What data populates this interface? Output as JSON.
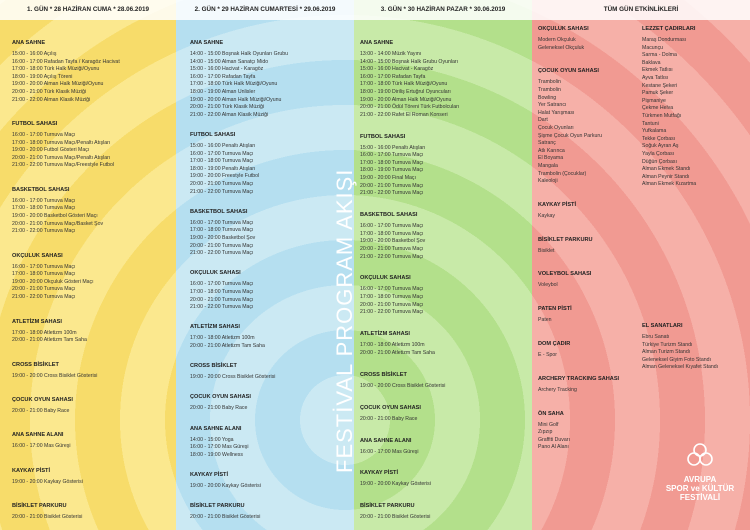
{
  "columns": [
    {
      "header": "1. GÜN * 28 HAZİRAN CUMA * 28.06.2019",
      "sections": [
        {
          "title": "ANA SAHNE",
          "items": [
            "15:00 - 16:00 Açılış",
            "16:00 - 17:00 Rafadan Tayfa / Karagöz Hacivat",
            "17:00 - 18:00 Türk Halk Müziği/Oyunu",
            "18:00 - 19:00 Açılış Töreni",
            "19:00 - 20:00 Alman Halk Müziği/Oyunu",
            "20:00 - 21:00 Türk Klasik Müziği",
            "21:00 - 22:00 Alman Klasik Müziği"
          ]
        },
        {
          "title": "FUTBOL SAHASI",
          "items": [
            "16:00 - 17:00 Turnuva Maçı",
            "17:00 - 18:00 Turnuva Maçı/Penaltı Atışları",
            "19:00 - 20:00 Futbol Gösteri Maçı",
            "20:00 - 21:00 Turnuva Maçı/Penaltı Atışları",
            "21:00 - 22:00 Turnuva Maçı/Freestyle Futbol"
          ]
        },
        {
          "title": "BASKETBOL SAHASI",
          "items": [
            "16:00 - 17:00 Turnuva Maçı",
            "17:00 - 18:00 Turnuva Maçı",
            "19:00 - 20:00 Basketbol Gösteri Maçı",
            "20:00 - 21:00 Turnuva Maçı/Basket Şov",
            "21:00 - 22:00 Turnuva Maçı"
          ]
        },
        {
          "title": "OKÇULUK SAHASI",
          "items": [
            "16:00 - 17:00 Turnuva Maçı",
            "17:00 - 18:00 Turnuva Maçı",
            "19:00 - 20:00 Okçuluk Gösteri Maçı",
            "20:00 - 21:00 Turnuva Maçı",
            "21:00 - 22:00 Turnuva Maçı"
          ]
        },
        {
          "title": "ATLETİZM SAHASI",
          "items": [
            "17:00 - 18:00 Atletizm 100m",
            "20:00 - 21:00 Atletizm Tam Saha"
          ]
        },
        {
          "title": "CROSS BİSİKLET",
          "items": [
            "19:00 - 20:00 Cross Bisiklet Gösterisi"
          ]
        },
        {
          "title": "ÇOCUK OYUN SAHASI",
          "items": [
            "20:00 - 21:00 Baby Race"
          ]
        },
        {
          "title": "ANA SAHNE ALANI",
          "items": [
            "16:00 - 17:00 Mas Güreşi"
          ]
        },
        {
          "title": "KAYKAY PİSTİ",
          "items": [
            "19:00 - 20:00 Kaykay Gösterisi"
          ]
        },
        {
          "title": "BİSİKLET PARKURU",
          "items": [
            "20:00 - 21:00 Bisiklet Gösterisi"
          ]
        }
      ]
    },
    {
      "header": "2. GÜN * 29 HAZİRAN CUMARTESİ * 29.06.2019",
      "sections": [
        {
          "title": "ANA SAHNE",
          "items": [
            "14:00 - 15:00 Boşnak Halk Oyunları Grubu",
            "14:00 - 15:00 Alman Sanatçı Mido",
            "15:00 - 16:00 Hacivat - Karagöz",
            "16:00 - 17:00 Rafadan Tayfa",
            "17:00 - 18:00 Türk Halk Müziği/Oyunu",
            "18:00 - 19:00 Alman Unlisler",
            "19:00 - 20:00 Alman Halk Müziği/Oyunu",
            "20:00 - 21:00 Türk Klasik Müziği",
            "21:00 - 22:00 Alman Klasik Müziği"
          ]
        },
        {
          "title": "FUTBOL SAHASI",
          "items": [
            "15:00 - 16:00 Penaltı Atışları",
            "16:00 - 17:00 Turnuva Maçı",
            "17:00 - 18:00 Turnuva Maçı",
            "18:00 - 19:00 Penaltı Atışları",
            "19:00 - 20:00 Freestyle Futbol",
            "20:00 - 21:00 Turnuva Maçı",
            "21:00 - 22:00 Turnuva Maçı"
          ]
        },
        {
          "title": "BASKETBOL SAHASI",
          "items": [
            "16:00 - 17:00 Turnuva Maçı",
            "17:00 - 18:00 Turnuva Maçı",
            "19:00 - 20:00 Basketbol Şov",
            "20:00 - 21:00 Turnuva Maçı",
            "21:00 - 22:00 Turnuva Maçı"
          ]
        },
        {
          "title": "OKÇULUK SAHASI",
          "items": [
            "16:00 - 17:00 Turnuva Maçı",
            "17:00 - 18:00 Turnuva Maçı",
            "20:00 - 21:00 Turnuva Maçı",
            "21:00 - 22:00 Turnuva Maçı"
          ]
        },
        {
          "title": "ATLETİZM SAHASI",
          "items": [
            "17:00 - 18:00 Atletizm 100m",
            "20:00 - 21:00 Atletizm Tam Saha"
          ]
        },
        {
          "title": "CROSS BİSİKLET",
          "items": [
            "19:00 - 20:00 Cross Bisiklet Gösterisi"
          ]
        },
        {
          "title": "ÇOCUK OYUN SAHASI",
          "items": [
            "20:00 - 21:00 Baby Race"
          ]
        },
        {
          "title": "ANA SAHNE ALANI",
          "items": [
            "14:00 - 15:00 Yoga",
            "16:00 - 17:00 Mas Güreşi",
            "18:00 - 19:00 Wellness"
          ]
        },
        {
          "title": "KAYKAY PİSTİ",
          "items": [
            "19:00 - 20:00 Kaykay Gösterisi"
          ]
        },
        {
          "title": "BİSİKLET PARKURU",
          "items": [
            "20:00 - 21:00 Bisiklet Gösterisi"
          ]
        }
      ]
    },
    {
      "header": "3. GÜN * 30 HAZİRAN PAZAR * 30.06.2019",
      "sections": [
        {
          "title": "ANA SAHNE",
          "items": [
            "13:00 - 14:00 Müzik Yayını",
            "14:00 - 15:00 Boşnak Halk Grubu Oyunları",
            "15:00 - 16:00 Hacivat - Karagöz",
            "16:00 - 17:00 Rafadan Tayfa",
            "17:00 - 18:00 Türk Halk Müziği/Oyunu",
            "18:00 - 19:00 Diriliş Ertuğrul Oyuncuları",
            "19:00 - 20:00 Alman Halk Müziği/Oyunu",
            "20:00 - 21:00 Ödül Töreni Türk Futbolcuları",
            "21:00 - 22:00 Rafet El Roman Konseri"
          ]
        },
        {
          "title": "FUTBOL SAHASI",
          "items": [
            "15:00 - 16:00 Penaltı Atışları",
            "16:00 - 17:00 Turnuva Maçı",
            "17:00 - 18:00 Turnuva Maçı",
            "18:00 - 19:00 Turnuva Maçı",
            "19:00 - 20:00 Final Maçı",
            "20:00 - 21:00 Turnuva Maçı",
            "21:00 - 22:00 Turnuva Maçı"
          ]
        },
        {
          "title": "BASKETBOL SAHASI",
          "items": [
            "16:00 - 17:00 Turnuva Maçı",
            "17:00 - 18:00 Turnuva Maçı",
            "19:00 - 20:00 Basketbol Şov",
            "20:00 - 21:00 Turnuva Maçı",
            "21:00 - 22:00 Turnuva Maçı"
          ]
        },
        {
          "title": "OKÇULUK SAHASI",
          "items": [
            "16:00 - 17:00 Turnuva Maçı",
            "17:00 - 18:00 Turnuva Maçı",
            "20:00 - 21:00 Turnuva Maçı",
            "21:00 - 22:00 Turnuva Maçı"
          ]
        },
        {
          "title": "ATLETİZM SAHASI",
          "items": [
            "17:00 - 18:00 Atletizm 100m",
            "20:00 - 21:00 Atletizm Tam Saha"
          ]
        },
        {
          "title": "CROSS BİSİKLET",
          "items": [
            "19:00 - 20:00 Cross Bisiklet Gösterisi"
          ]
        },
        {
          "title": "ÇOCUK OYUN SAHASI",
          "items": [
            "20:00 - 21:00 Baby Race"
          ]
        },
        {
          "title": "ANA SAHNE ALANI",
          "items": [
            "16:00 - 17:00 Mas Güreşi"
          ]
        },
        {
          "title": "KAYKAY PİSTİ",
          "items": [
            "19:00 - 20:00 Kaykay Gösterisi"
          ]
        },
        {
          "title": "BİSİKLET PARKURU",
          "items": [
            "20:00 - 21:00 Bisiklet Gösterisi"
          ]
        }
      ]
    }
  ],
  "all_day": {
    "header": "TÜM GÜN ETKİNLİKLERİ",
    "left": [
      {
        "title": "OKÇULUK SAHASI",
        "items": [
          "Modern Okçuluk",
          "Geleneksel Okçuluk"
        ]
      },
      {
        "title": "ÇOCUK OYUN SAHASI",
        "items": [
          "Trambolin",
          "Trambolin",
          "Bowling",
          "Yer Satrancı",
          "Halat Yarışması",
          "Dart",
          "Çocuk Oyunları",
          "Şişme Çocuk Oyun Parkuru",
          "Satranç",
          "Atlı Karınca",
          "El Boyama",
          "Mangala",
          "Trambolin (Çocuklar)",
          "Kaleoloji"
        ]
      },
      {
        "title": "KAYKAY PİSTİ",
        "items": [
          "Kaykay"
        ]
      },
      {
        "title": "BİSİKLET PARKURU",
        "items": [
          "Bisiklet"
        ]
      },
      {
        "title": "VOLEYBOL SAHASI",
        "items": [
          "Voleybol"
        ]
      },
      {
        "title": "PATEN PİSTİ",
        "items": [
          "Paten"
        ]
      },
      {
        "title": "DOM ÇADIR",
        "items": [
          "E - Spor"
        ]
      },
      {
        "title": "ARCHERY TRACKING SAHASI",
        "items": [
          "Archery Tracking"
        ]
      },
      {
        "title": "ÖN SAHA",
        "items": [
          "Mini Golf",
          "Zıpzıp",
          "Graffiti Duvarı",
          "Pano Al Alanı"
        ]
      }
    ],
    "right": [
      {
        "title": "LEZZET ÇADIRLARI",
        "items": [
          "Maraş Dondurması",
          "Macunçu",
          "Sarma - Dolma",
          "Baklava",
          "Ekmek Tatlısı",
          "Ayva Tatlısı",
          "Kestane Şekeri",
          "Pamuk Şeker",
          "Pişmaniye",
          "Çekme Helva",
          "Türkmen Mutfağı",
          "Tantuni",
          "Yufkalama",
          "Tekke Çorbası",
          "Soğuk Ayran Aş",
          "Yayla Çorbası",
          "Düğün Çorbası",
          "Alman Ekmek Standı",
          "Alman Peynir Standı",
          "Alman Ekmek Kızartma"
        ]
      },
      {
        "title": "EL SANATLARI",
        "items": [
          "Ebru Sanatı",
          "Türkiye Turizm Standı",
          "Alman Turizm Standı",
          "Geleneksel Giyim Foto Standı",
          "Alman Geleneksel Kıyafet Standı"
        ]
      }
    ]
  },
  "center_title": "FESTİVAL PROGRAM AKIŞI",
  "logo": {
    "line1": "AVRUPA",
    "line2": "SPOR ve KÜLTÜR",
    "line3": "FESTİVALİ"
  }
}
